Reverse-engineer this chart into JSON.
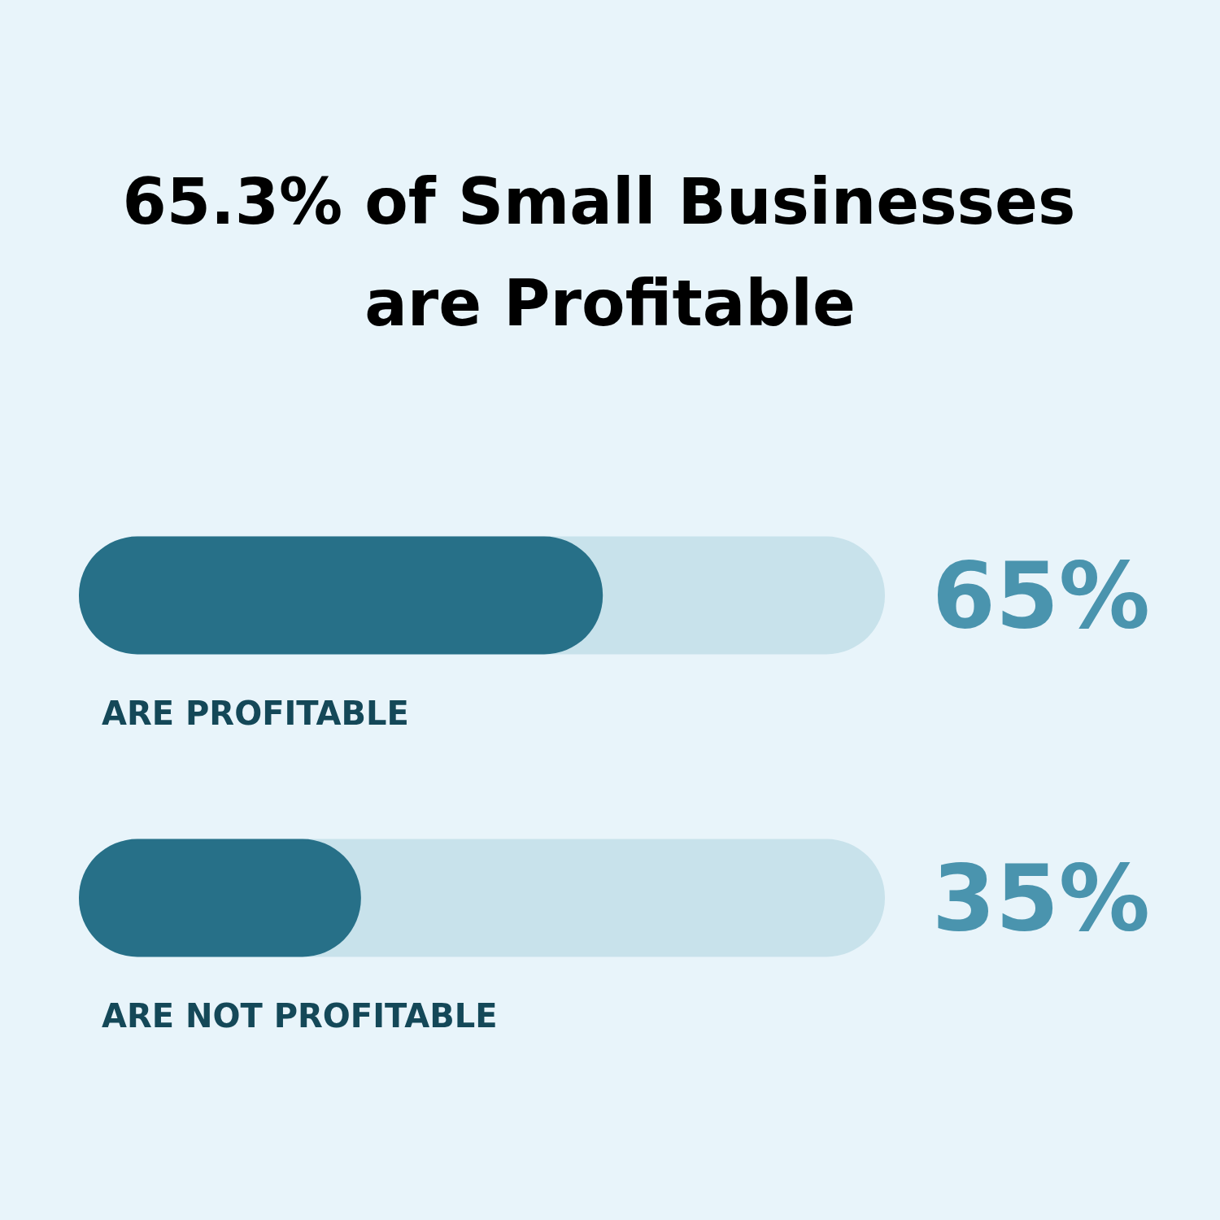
{
  "chart_data": {
    "type": "bar",
    "orientation": "horizontal",
    "title": "65.3% of Small Businesses are Profitable",
    "categories": [
      "ARE PROFITABLE",
      "ARE NOT PROFITABLE"
    ],
    "values": [
      65,
      35
    ],
    "color": "#277088",
    "value_labels": [
      "65%",
      "35%"
    ],
    "xlim": [
      0,
      100
    ]
  }
}
